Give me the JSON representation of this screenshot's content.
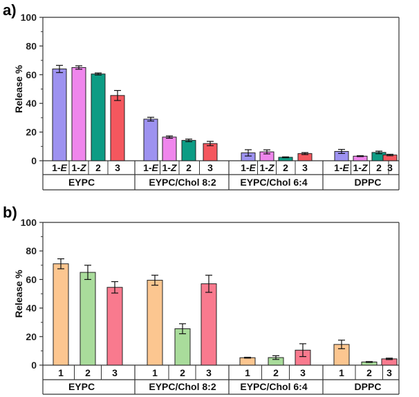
{
  "chart_data": [
    {
      "type": "bar",
      "panel_label": "a)",
      "ylabel": "Release %",
      "ylim": [
        0,
        100
      ],
      "yticks": [
        "0",
        "20",
        "40",
        "60",
        "80",
        "100"
      ],
      "groups": [
        {
          "label": "EYPC",
          "bars": [
            {
              "label": "1-",
              "label_italic": "E",
              "value": 64,
              "error": 2.5,
              "color": "#9d92f0"
            },
            {
              "label": "1-",
              "label_italic": "Z",
              "value": 65,
              "error": 1.2,
              "color": "#ef86ec"
            },
            {
              "label": "2",
              "label_italic": "",
              "value": 60.5,
              "error": 0.7,
              "color": "#0d9c84"
            },
            {
              "label": "3",
              "label_italic": "",
              "value": 45.5,
              "error": 3.5,
              "color": "#f4575e"
            }
          ]
        },
        {
          "label": "EYPC/Chol  8:2",
          "bars": [
            {
              "label": "1-",
              "label_italic": "E",
              "value": 29,
              "error": 1.3,
              "color": "#9d92f0"
            },
            {
              "label": "1-",
              "label_italic": "Z",
              "value": 16.5,
              "error": 0.8,
              "color": "#ef86ec"
            },
            {
              "label": "2",
              "label_italic": "",
              "value": 14.2,
              "error": 0.9,
              "color": "#0d9c84"
            },
            {
              "label": "3",
              "label_italic": "",
              "value": 12,
              "error": 1.5,
              "color": "#f4575e"
            }
          ]
        },
        {
          "label": "EYPC/Chol  6:4",
          "bars": [
            {
              "label": "1-",
              "label_italic": "E",
              "value": 5.5,
              "error": 2.2,
              "color": "#9d92f0"
            },
            {
              "label": "1-",
              "label_italic": "Z",
              "value": 6.2,
              "error": 1.4,
              "color": "#ef86ec"
            },
            {
              "label": "2",
              "label_italic": "",
              "value": 2.4,
              "error": 0.3,
              "color": "#0d9c84"
            },
            {
              "label": "3",
              "label_italic": "",
              "value": 5,
              "error": 0.7,
              "color": "#f4575e"
            }
          ]
        },
        {
          "label": "DPPC",
          "bars": [
            {
              "label": "1-",
              "label_italic": "E",
              "value": 6.5,
              "error": 1.4,
              "color": "#9d92f0"
            },
            {
              "label": "1-",
              "label_italic": "Z",
              "value": 3.2,
              "error": 0.3,
              "color": "#ef86ec"
            },
            {
              "label": "2",
              "label_italic": "",
              "value": 5.8,
              "error": 0.9,
              "color": "#0d9c84"
            },
            {
              "label": "3",
              "label_italic": "",
              "value": 4,
              "error": 0.5,
              "color": "#f4575e"
            }
          ]
        }
      ]
    },
    {
      "type": "bar",
      "panel_label": "b)",
      "ylabel": "Release %",
      "ylim": [
        0,
        100
      ],
      "yticks": [
        "0",
        "20",
        "40",
        "60",
        "80",
        "100"
      ],
      "groups": [
        {
          "label": "EYPC",
          "bars": [
            {
              "label": "1",
              "label_italic": "",
              "value": 71,
              "error": 3.5,
              "color": "#fcc690"
            },
            {
              "label": "2",
              "label_italic": "",
              "value": 65,
              "error": 5,
              "color": "#a9dc9b"
            },
            {
              "label": "3",
              "label_italic": "",
              "value": 54.5,
              "error": 4,
              "color": "#f97a8e"
            }
          ]
        },
        {
          "label": "EYPC/Chol  8:2",
          "bars": [
            {
              "label": "1",
              "label_italic": "",
              "value": 59.5,
              "error": 3.5,
              "color": "#fcc690"
            },
            {
              "label": "2",
              "label_italic": "",
              "value": 25.5,
              "error": 3.5,
              "color": "#a9dc9b"
            },
            {
              "label": "3",
              "label_italic": "",
              "value": 57,
              "error": 6,
              "color": "#f97a8e"
            }
          ]
        },
        {
          "label": "EYPC/Chol  6:4",
          "bars": [
            {
              "label": "1",
              "label_italic": "",
              "value": 5.2,
              "error": 0.3,
              "color": "#fcc690"
            },
            {
              "label": "2",
              "label_italic": "",
              "value": 5.3,
              "error": 1.3,
              "color": "#a9dc9b"
            },
            {
              "label": "3",
              "label_italic": "",
              "value": 10.5,
              "error": 4.5,
              "color": "#f97a8e"
            }
          ]
        },
        {
          "label": "DPPC",
          "bars": [
            {
              "label": "1",
              "label_italic": "",
              "value": 14.5,
              "error": 3,
              "color": "#fcc690"
            },
            {
              "label": "2",
              "label_italic": "",
              "value": 2.2,
              "error": 0.3,
              "color": "#a9dc9b"
            },
            {
              "label": "3",
              "label_italic": "",
              "value": 4.4,
              "error": 0.5,
              "color": "#f97a8e"
            }
          ]
        }
      ]
    }
  ]
}
